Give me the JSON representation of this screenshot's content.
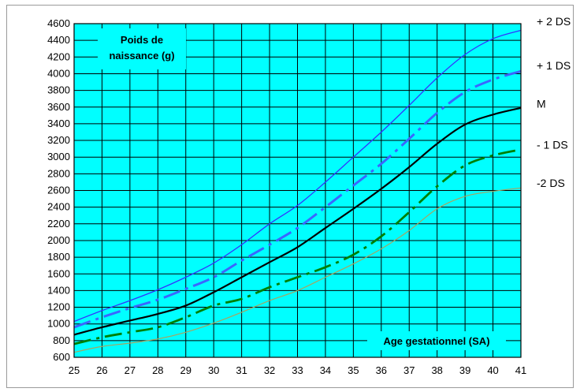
{
  "chart_data": {
    "type": "line",
    "title": "",
    "ylabel": "Poids de naissance (g)",
    "ylabel_lines": [
      "Poids de",
      "naissance (g)"
    ],
    "xlabel": "Age gestationnel (SA)",
    "x": [
      25,
      26,
      27,
      28,
      29,
      30,
      31,
      32,
      33,
      34,
      35,
      36,
      37,
      38,
      39,
      40,
      41
    ],
    "xlim": [
      25,
      41
    ],
    "ylim": [
      600,
      4600
    ],
    "xticks": [
      "25",
      "26",
      "27",
      "28",
      "29",
      "30",
      "31",
      "32",
      "33",
      "34",
      "35",
      "36",
      "37",
      "38",
      "39",
      "40",
      "41"
    ],
    "yticks": [
      "600",
      "800",
      "1000",
      "1200",
      "1400",
      "1600",
      "1800",
      "2000",
      "2200",
      "2400",
      "2600",
      "2800",
      "3000",
      "3200",
      "3400",
      "3600",
      "3800",
      "4000",
      "4200",
      "4400",
      "4600"
    ],
    "grid": true,
    "plot_background": "#00ffff",
    "series": [
      {
        "name": "+ 2 DS",
        "color": "#3333ff",
        "dash": "solid",
        "width": 1.3,
        "values": [
          1030,
          1160,
          1280,
          1410,
          1560,
          1730,
          1950,
          2200,
          2420,
          2700,
          3000,
          3300,
          3620,
          3950,
          4230,
          4420,
          4520
        ]
      },
      {
        "name": "+ 1 DS",
        "color": "#3a66ff",
        "dash": "dashdot",
        "width": 3,
        "values": [
          960,
          1080,
          1190,
          1290,
          1420,
          1560,
          1760,
          1950,
          2150,
          2400,
          2660,
          2920,
          3220,
          3530,
          3780,
          3930,
          4030
        ]
      },
      {
        "name": "M",
        "color": "#000000",
        "dash": "solid",
        "width": 2.2,
        "values": [
          870,
          960,
          1040,
          1120,
          1220,
          1380,
          1560,
          1740,
          1920,
          2150,
          2380,
          2620,
          2880,
          3160,
          3390,
          3510,
          3590
        ]
      },
      {
        "name": "- 1 DS",
        "color": "#008000",
        "dash": "dashdot",
        "width": 2.8,
        "values": [
          760,
          840,
          900,
          960,
          1080,
          1220,
          1300,
          1440,
          1560,
          1680,
          1830,
          2050,
          2340,
          2650,
          2900,
          3020,
          3090
        ]
      },
      {
        "name": "-2 DS",
        "color": "#a8a460",
        "dash": "solid",
        "width": 1.2,
        "values": [
          660,
          730,
          770,
          820,
          900,
          1010,
          1140,
          1280,
          1400,
          1560,
          1720,
          1900,
          2120,
          2380,
          2530,
          2590,
          2630
        ]
      }
    ]
  }
}
